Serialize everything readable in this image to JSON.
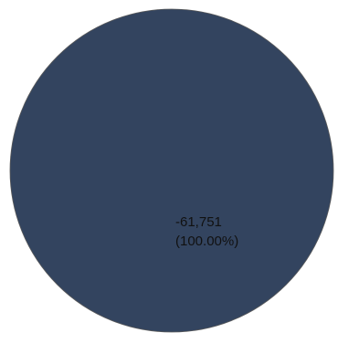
{
  "chart_data": {
    "type": "pie",
    "title": "",
    "slices": [
      {
        "value": -61751,
        "value_label": "-61,751",
        "percent": 100.0,
        "percent_label": "(100.00%)",
        "color": "#33445f"
      }
    ],
    "legend": "none",
    "grid": false
  }
}
